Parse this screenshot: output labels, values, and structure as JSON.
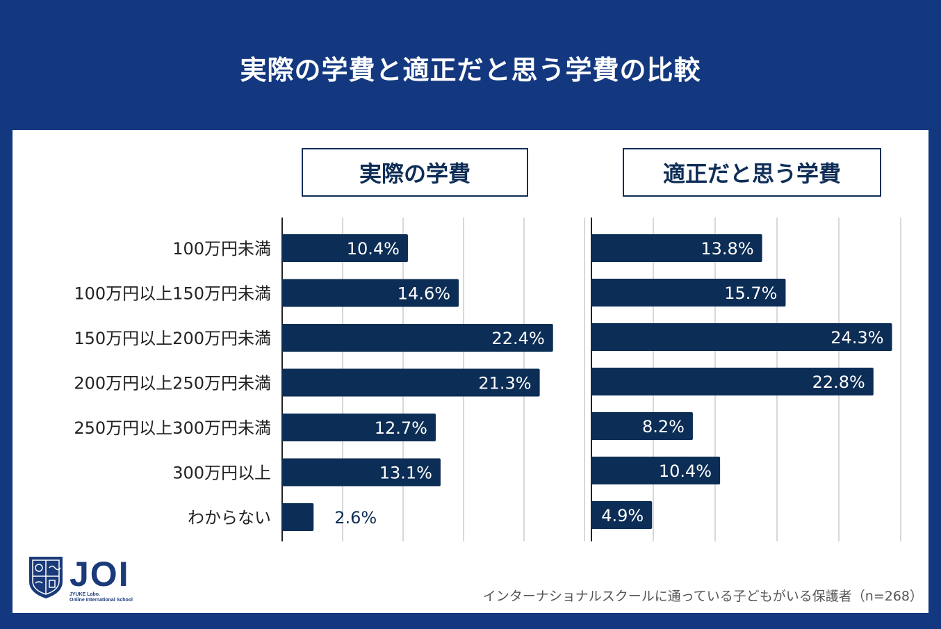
{
  "title": "実際の学費と適正だと思う学費の比較",
  "chart_data": [
    {
      "type": "bar",
      "orientation": "horizontal",
      "title": "実際の学費",
      "categories": [
        "100万円未満",
        "100万円以上150万円未満",
        "150万円以上200万円未満",
        "200万円以上250万円未満",
        "250万円以上300万円未満",
        "300万円以上",
        "わからない"
      ],
      "values": [
        10.4,
        14.6,
        22.4,
        21.3,
        12.7,
        13.1,
        2.6
      ],
      "labels": [
        "10.4%",
        "14.6%",
        "22.4%",
        "21.3%",
        "12.7%",
        "13.1%",
        "2.6%"
      ],
      "xlim": [
        0,
        25
      ]
    },
    {
      "type": "bar",
      "orientation": "horizontal",
      "title": "適正だと思う学費",
      "categories": [
        "100万円未満",
        "100万円以上150万円未満",
        "150万円以上200万円未満",
        "200万円以上250万円未満",
        "250万円以上300万円未満",
        "300万円以上",
        "わからない"
      ],
      "values": [
        13.8,
        15.7,
        24.3,
        22.8,
        8.2,
        10.4,
        4.9
      ],
      "labels": [
        "13.8%",
        "15.7%",
        "24.3%",
        "22.8%",
        "8.2%",
        "10.4%",
        "4.9%"
      ],
      "xlim": [
        0,
        25
      ]
    }
  ],
  "colors": {
    "bar": "#0c2d55",
    "label_inside": "#ffffff",
    "label_outside": "#0c2d55",
    "grid": "#cccccc",
    "background": "#13387f"
  },
  "logo": {
    "name": "JOI",
    "sub1": "JYUKE Labo.",
    "sub2": "Online International School"
  },
  "footnote": "インターナショナルスクールに通っている子どもがいる保護者（n=268）"
}
